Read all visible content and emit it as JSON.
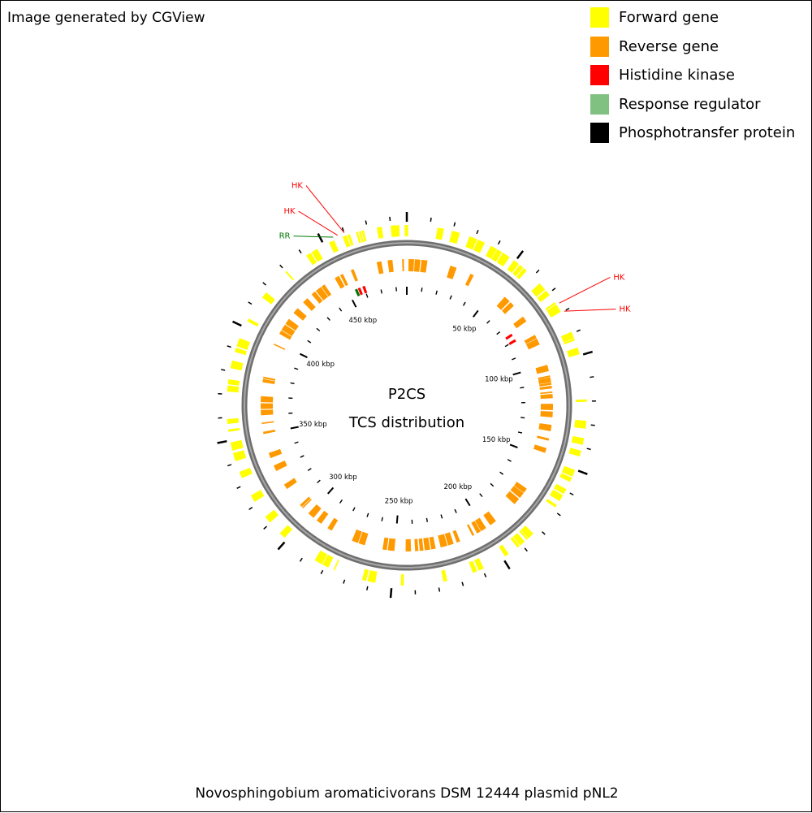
{
  "credit": "Image generated by CGView",
  "legend": [
    {
      "label": "Forward gene",
      "color": "#ffff00"
    },
    {
      "label": "Reverse gene",
      "color": "#ff9900"
    },
    {
      "label": "Histidine kinase",
      "color": "#ff0000"
    },
    {
      "label": "Response regulator",
      "color": "#80c080"
    },
    {
      "label": "Phosphotransfer protein",
      "color": "#000000"
    }
  ],
  "center": {
    "line1": "P2CS",
    "line2": "TCS distribution"
  },
  "footer": "Novosphingobium aromaticivorans DSM 12444 plasmid pNL2",
  "map": {
    "total_kbp": 487,
    "tick_labels": [
      "50 kbp",
      "100 kbp",
      "150 kbp",
      "200 kbp",
      "250 kbp",
      "300 kbp",
      "350 kbp",
      "400 kbp",
      "450 kbp"
    ],
    "features": [
      {
        "label": "HK",
        "kbp": 460,
        "type": "Histidine kinase",
        "color": "#ff0000"
      },
      {
        "label": "HK",
        "kbp": 457,
        "type": "Histidine kinase",
        "color": "#ff0000"
      },
      {
        "label": "RR",
        "kbp": 455,
        "type": "Response regulator",
        "color": "#007700"
      },
      {
        "label": "HK",
        "kbp": 76,
        "type": "Histidine kinase",
        "color": "#ff0000"
      },
      {
        "label": "HK",
        "kbp": 80,
        "type": "Histidine kinase",
        "color": "#ff0000"
      }
    ],
    "colors": {
      "forward": "#ffff00",
      "reverse": "#ff9900",
      "backbone": "#808080"
    }
  }
}
